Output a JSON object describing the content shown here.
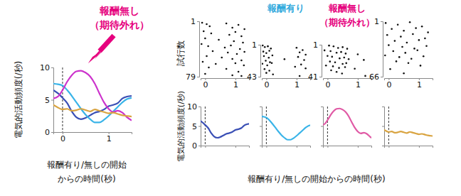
{
  "chart_data": [
    {
      "type": "line",
      "y_label": "電気的活動頻度(/秒)",
      "x_label": [
        "報酬有り/無しの開始",
        "からの時間(秒)"
      ],
      "annotation": [
        "報酬無し",
        "（期待外れ）"
      ],
      "x": [
        -0.2,
        -0.1,
        0,
        0.1,
        0.2,
        0.3,
        0.4,
        0.5,
        0.6,
        0.7,
        0.8,
        0.9,
        1.0,
        1.1,
        1.2,
        1.3,
        1.4,
        1.5
      ],
      "xlim": [
        -0.2,
        1.5
      ],
      "xticks": [
        0,
        1
      ],
      "ylim": [
        0,
        10
      ],
      "yticks": [
        0,
        5,
        10
      ],
      "event_x": 0,
      "series": [
        {
          "color": "#3a4fb5",
          "values": [
            6.5,
            6.0,
            5.3,
            4.5,
            3.2,
            2.3,
            2.0,
            2.2,
            2.6,
            3.0,
            3.2,
            3.5,
            4.0,
            4.2,
            4.5,
            5.2,
            5.5,
            5.6
          ]
        },
        {
          "color": "#3ab4e8",
          "values": [
            7.5,
            7.4,
            7.2,
            6.5,
            5.6,
            4.6,
            3.6,
            2.7,
            2.0,
            1.5,
            1.5,
            1.9,
            2.5,
            3.2,
            3.9,
            4.6,
            5.1,
            5.3
          ]
        },
        {
          "color": "#cc33cc",
          "values": [
            5.2,
            5.5,
            6.5,
            7.8,
            8.8,
            9.4,
            9.5,
            9.2,
            8.6,
            7.5,
            6.0,
            4.6,
            3.6,
            3.1,
            3.3,
            3.0,
            2.3,
            1.8
          ]
        },
        {
          "color": "#d9a441",
          "values": [
            4.2,
            3.8,
            3.5,
            3.6,
            3.3,
            3.4,
            3.6,
            3.4,
            3.2,
            3.5,
            3.3,
            3.1,
            2.9,
            3.0,
            2.8,
            2.6,
            2.5,
            2.4
          ]
        }
      ]
    },
    {
      "type": "raster",
      "y_label": "試行数",
      "x": [
        -0.1,
        0.05,
        0.15,
        0.7,
        0.9,
        1.1,
        1.3,
        -0.05,
        0.2,
        0.8,
        1.0,
        1.2,
        0.0,
        0.45,
        0.95,
        1.25,
        -0.12,
        0.1,
        0.65,
        0.85,
        1.15,
        0.25,
        0.75,
        1.05,
        1.3,
        0.05,
        0.55,
        0.9,
        1.2,
        -0.08,
        0.35,
        1.0,
        1.28,
        0.12,
        0.7,
        1.1,
        0.0,
        0.9,
        1.2
      ],
      "values": [
        3,
        5,
        8,
        4,
        10,
        6,
        12,
        15,
        18,
        20,
        16,
        22,
        25,
        27,
        29,
        31,
        33,
        36,
        38,
        35,
        40,
        43,
        45,
        47,
        44,
        50,
        52,
        54,
        56,
        58,
        61,
        60,
        63,
        66,
        68,
        72,
        75,
        77,
        78
      ],
      "xlim": [
        -0.15,
        1.45
      ],
      "xticks": [
        0,
        1
      ],
      "ylim": [
        1,
        79
      ],
      "yticks": [
        1,
        79
      ]
    },
    {
      "type": "raster",
      "title": [
        "報酬有り"
      ],
      "x": [
        -0.12,
        -0.05,
        0.05,
        0.15,
        1.0,
        1.2,
        -0.1,
        0.0,
        0.1,
        1.1,
        1.3,
        -0.08,
        0.08,
        0.2,
        0.6,
        1.05,
        -0.02,
        0.12,
        1.25,
        -0.13,
        0.03,
        0.18,
        0.95,
        1.15,
        -0.06,
        0.1,
        1.3,
        0.0,
        0.22,
        1.1
      ],
      "values": [
        2,
        4,
        3,
        6,
        5,
        8,
        10,
        12,
        9,
        11,
        14,
        16,
        18,
        15,
        20,
        17,
        22,
        24,
        21,
        26,
        28,
        25,
        30,
        27,
        33,
        35,
        32,
        38,
        40,
        42
      ],
      "xlim": [
        -0.15,
        1.45
      ],
      "xticks": [
        0,
        1
      ],
      "ylim": [
        1,
        43
      ],
      "yticks": [
        1,
        43
      ]
    },
    {
      "type": "raster",
      "title": [
        "報酬無し",
        "（期待外れ）"
      ],
      "x": [
        0.05,
        0.2,
        0.35,
        0.5,
        0.65,
        -0.1,
        0.1,
        0.3,
        0.45,
        0.6,
        1.0,
        0.0,
        0.15,
        0.4,
        0.55,
        0.7,
        1.2,
        0.08,
        0.25,
        0.5,
        0.62,
        -0.05,
        0.18,
        0.38,
        0.58,
        0.9,
        0.12,
        0.3,
        0.48,
        1.25
      ],
      "values": [
        2,
        3,
        5,
        4,
        6,
        8,
        9,
        11,
        10,
        12,
        13,
        15,
        16,
        18,
        17,
        19,
        20,
        22,
        23,
        25,
        24,
        27,
        28,
        30,
        29,
        31,
        33,
        35,
        37,
        40
      ],
      "xlim": [
        -0.15,
        1.45
      ],
      "xticks": [
        0,
        1
      ],
      "ylim": [
        1,
        41
      ],
      "yticks": [
        1,
        41
      ]
    },
    {
      "type": "raster",
      "x": [
        -0.1,
        0.3,
        0.7,
        1.1,
        0.1,
        0.5,
        0.9,
        1.3,
        -0.05,
        0.4,
        0.8,
        1.2,
        0.2,
        0.6,
        1.0,
        0.0,
        0.45,
        0.85,
        1.25,
        0.15,
        0.55,
        0.95,
        -0.12,
        0.35,
        0.75,
        1.15,
        0.25,
        0.65,
        1.05,
        0.05,
        0.5
      ],
      "values": [
        3,
        5,
        2,
        7,
        10,
        12,
        9,
        14,
        17,
        19,
        16,
        21,
        24,
        26,
        23,
        29,
        31,
        33,
        30,
        36,
        38,
        35,
        41,
        43,
        45,
        42,
        48,
        50,
        53,
        57,
        62
      ],
      "xlim": [
        -0.15,
        1.45
      ],
      "xticks": [
        0,
        1
      ],
      "ylim": [
        1,
        66
      ],
      "yticks": [
        1,
        66
      ]
    },
    {
      "type": "line",
      "y_label": "電気的活動頻度(/秒)",
      "x_label": [
        "報酬有り/無しの開始からの時間(秒)"
      ],
      "tick_labels": "y",
      "x": [
        -0.2,
        -0.1,
        0,
        0.1,
        0.2,
        0.3,
        0.4,
        0.5,
        0.6,
        0.7,
        0.8,
        0.9,
        1.0,
        1.1,
        1.2,
        1.3,
        1.4,
        1.5
      ],
      "xlim": [
        -0.15,
        1.45
      ],
      "xticks": [
        0,
        1
      ],
      "ylim": [
        0,
        10
      ],
      "yticks": [
        0,
        5,
        10
      ],
      "event_x": 0,
      "series": [
        {
          "color": "#3a4fb5",
          "values": [
            6.5,
            6.0,
            5.3,
            4.5,
            3.2,
            2.3,
            2.0,
            2.2,
            2.6,
            3.0,
            3.2,
            3.5,
            4.0,
            4.2,
            4.5,
            5.2,
            5.5,
            5.6
          ]
        }
      ]
    },
    {
      "type": "line",
      "tick_labels": false,
      "x": [
        -0.2,
        -0.1,
        0,
        0.1,
        0.2,
        0.3,
        0.4,
        0.5,
        0.6,
        0.7,
        0.8,
        0.9,
        1.0,
        1.1,
        1.2,
        1.3,
        1.4,
        1.5
      ],
      "xlim": [
        -0.15,
        1.45
      ],
      "xticks": [
        0,
        1
      ],
      "ylim": [
        0,
        10
      ],
      "yticks": [
        0,
        5,
        10
      ],
      "event_x": 0,
      "series": [
        {
          "color": "#3ab4e8",
          "values": [
            7.5,
            7.4,
            7.2,
            6.5,
            5.6,
            4.6,
            3.6,
            2.7,
            2.0,
            1.5,
            1.5,
            1.9,
            2.5,
            3.2,
            3.9,
            4.6,
            5.1,
            5.3
          ]
        }
      ]
    },
    {
      "type": "line",
      "tick_labels": false,
      "x": [
        -0.2,
        -0.1,
        0,
        0.1,
        0.2,
        0.3,
        0.4,
        0.5,
        0.6,
        0.7,
        0.8,
        0.9,
        1.0,
        1.1,
        1.2,
        1.3,
        1.4,
        1.5
      ],
      "xlim": [
        -0.15,
        1.45
      ],
      "xticks": [
        0,
        1
      ],
      "ylim": [
        0,
        10
      ],
      "yticks": [
        0,
        5,
        10
      ],
      "event_x": 0,
      "series": [
        {
          "color": "#e05aa5",
          "values": [
            5.2,
            5.5,
            6.5,
            7.8,
            8.8,
            9.4,
            9.5,
            9.2,
            8.6,
            7.5,
            6.0,
            4.6,
            3.6,
            3.1,
            3.3,
            3.0,
            2.3,
            1.8
          ]
        }
      ]
    },
    {
      "type": "line",
      "tick_labels": false,
      "x": [
        -0.2,
        -0.1,
        0,
        0.1,
        0.2,
        0.3,
        0.4,
        0.5,
        0.6,
        0.7,
        0.8,
        0.9,
        1.0,
        1.1,
        1.2,
        1.3,
        1.4,
        1.5
      ],
      "xlim": [
        -0.15,
        1.45
      ],
      "xticks": [
        0,
        1
      ],
      "ylim": [
        0,
        10
      ],
      "yticks": [
        0,
        5,
        10
      ],
      "event_x": 0,
      "series": [
        {
          "color": "#d9a441",
          "values": [
            4.2,
            3.8,
            3.5,
            3.6,
            3.3,
            3.4,
            3.6,
            3.4,
            3.2,
            3.5,
            3.3,
            3.1,
            2.9,
            3.0,
            2.8,
            2.6,
            2.5,
            2.4
          ]
        }
      ]
    }
  ]
}
